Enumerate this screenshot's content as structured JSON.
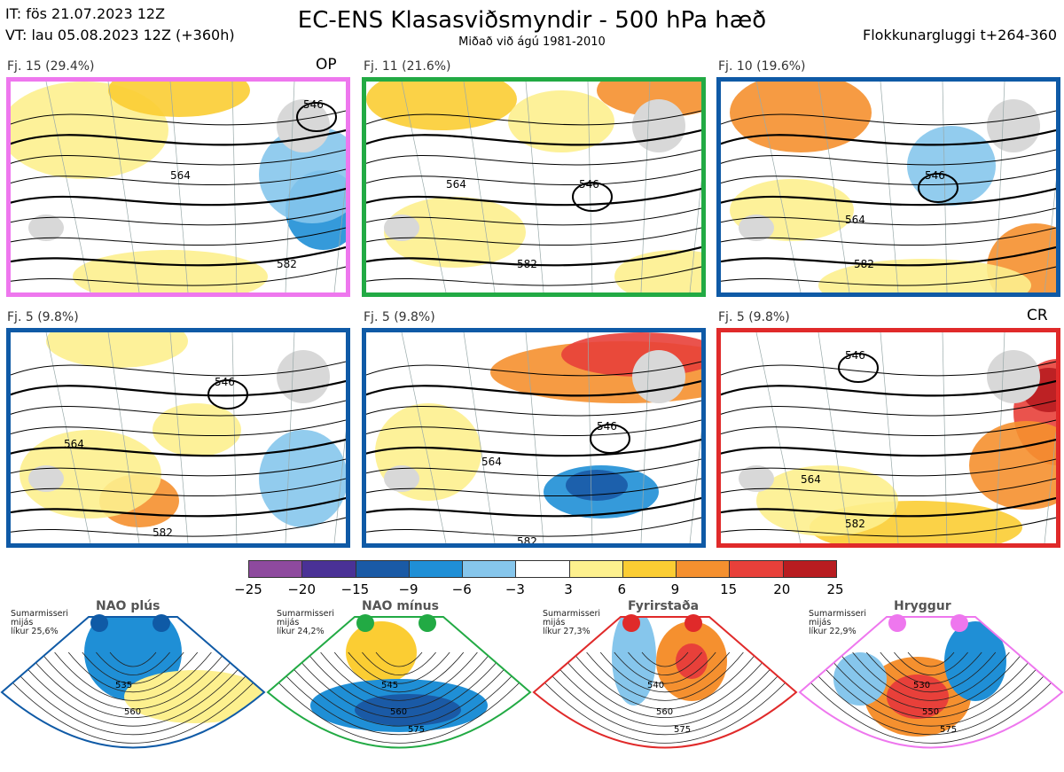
{
  "header": {
    "init_time": "IT: fös 21.07.2023 12Z",
    "valid_time": "VT: lau 05.08.2023 12Z  (+360h)",
    "title": "EC-ENS Klasasviðsmyndir - 500 hPa hæð",
    "subtitle": "Miðað við ágú 1981-2010",
    "window": "Flokkunargluggi t+264-360"
  },
  "panels": [
    {
      "label": "Fj. 15 (29.4%)",
      "tag": "OP",
      "frame_color": "#ee77ee",
      "contours": [
        "564",
        "582",
        "546"
      ]
    },
    {
      "label": "Fj. 11 (21.6%)",
      "tag": "",
      "frame_color": "#22aa44",
      "contours": [
        "564",
        "582",
        "546"
      ]
    },
    {
      "label": "Fj. 10 (19.6%)",
      "tag": "",
      "frame_color": "#0f5aa6",
      "contours": [
        "564",
        "582",
        "546"
      ]
    },
    {
      "label": "Fj. 5 (9.8%)",
      "tag": "",
      "frame_color": "#0f5aa6",
      "contours": [
        "564",
        "582",
        "546"
      ]
    },
    {
      "label": "Fj. 5 (9.8%)",
      "tag": "",
      "frame_color": "#0f5aa6",
      "contours": [
        "564",
        "582",
        "546"
      ]
    },
    {
      "label": "Fj. 5 (9.8%)",
      "tag": "CR",
      "frame_color": "#e02a2a",
      "contours": [
        "564",
        "582",
        "546"
      ]
    }
  ],
  "colorbar": {
    "ticks": [
      "−25",
      "−20",
      "−15",
      "−9",
      "−6",
      "−3",
      "3",
      "6",
      "9",
      "15",
      "20",
      "25"
    ],
    "colors": [
      "#8e4a9e",
      "#4a3196",
      "#1a5aa6",
      "#1f8fd6",
      "#86c6ec",
      "#ffffff",
      "#fdf08e",
      "#fbcd33",
      "#f5902f",
      "#e8403a",
      "#b81c20"
    ]
  },
  "regimes": [
    {
      "name": "NAO plús",
      "stat1": "Sumarmisseri",
      "stat2": "mijás",
      "stat3": "líkur 25,6%",
      "color": "#0f5aa6",
      "contours": [
        "535",
        "560"
      ]
    },
    {
      "name": "NAO mínus",
      "stat1": "Sumarmisseri",
      "stat2": "mijás",
      "stat3": "líkur 24,2%",
      "color": "#22aa44",
      "contours": [
        "545",
        "560",
        "575"
      ]
    },
    {
      "name": "Fyrirstaða",
      "stat1": "Sumarmisseri",
      "stat2": "mijás",
      "stat3": "líkur 27,3%",
      "color": "#e02a2a",
      "contours": [
        "540",
        "560",
        "575"
      ]
    },
    {
      "name": "Hryggur",
      "stat1": "Sumarmisseri",
      "stat2": "mijás",
      "stat3": "líkur 22,9%",
      "color": "#ee77ee",
      "contours": [
        "530",
        "550",
        "575"
      ]
    }
  ]
}
